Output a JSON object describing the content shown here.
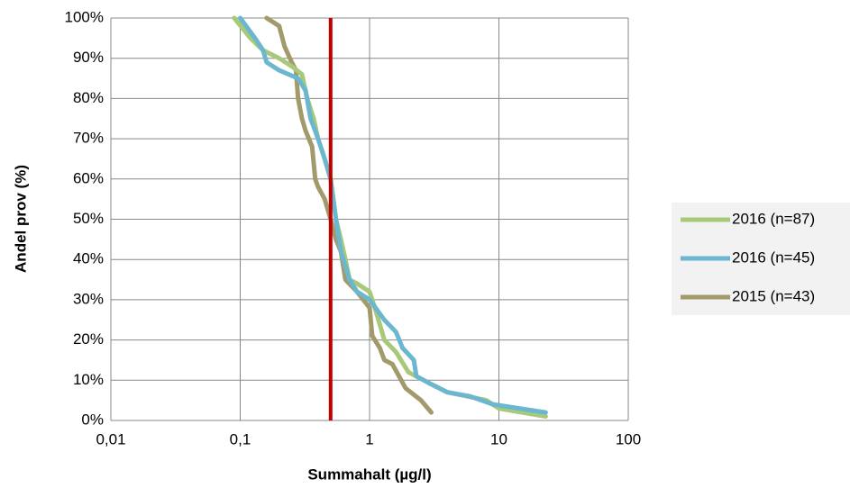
{
  "chart_data": {
    "type": "line",
    "x_label": "Summahalt (µg/l)",
    "y_label": "Andel prov (%)",
    "xscale": "log",
    "grid": true,
    "xlim": [
      0.01,
      100
    ],
    "xticks": [
      {
        "value": 0.01,
        "label": "0,01"
      },
      {
        "value": 0.1,
        "label": "0,1"
      },
      1,
      10,
      100
    ],
    "ylim": [
      0,
      100
    ],
    "yticks": [
      {
        "value": 0,
        "label": "0%"
      },
      {
        "value": 10,
        "label": "10%"
      },
      {
        "value": 20,
        "label": "20%"
      },
      {
        "value": 30,
        "label": "30%"
      },
      {
        "value": 40,
        "label": "40%"
      },
      {
        "value": 50,
        "label": "50%"
      },
      {
        "value": 60,
        "label": "60%"
      },
      {
        "value": 70,
        "label": "70%"
      },
      {
        "value": 80,
        "label": "80%"
      },
      {
        "value": 90,
        "label": "90%"
      },
      {
        "value": 100,
        "label": "100%"
      }
    ],
    "reference_line": {
      "value": 0.5,
      "color": "#c00000"
    },
    "legend": "right",
    "series": [
      {
        "name": "2016 (n=87)",
        "color": "#a9c97a",
        "x": [
          0.09,
          0.12,
          0.15,
          0.2,
          0.25,
          0.3,
          0.33,
          0.37,
          0.4,
          0.45,
          0.5,
          0.55,
          0.6,
          0.65,
          0.7,
          0.8,
          1,
          1.1,
          1.3,
          1.6,
          2,
          3,
          4,
          8,
          10,
          23
        ],
        "values": [
          100,
          95,
          92,
          90,
          88,
          86,
          80,
          75,
          70,
          65,
          60,
          50,
          45,
          40,
          35,
          34,
          32,
          28,
          20,
          17,
          12,
          9,
          7,
          5,
          3,
          1
        ]
      },
      {
        "name": "2016 (n=45)",
        "color": "#6bb7cf",
        "x": [
          0.1,
          0.13,
          0.15,
          0.16,
          0.2,
          0.28,
          0.32,
          0.35,
          0.4,
          0.45,
          0.5,
          0.55,
          0.6,
          0.7,
          0.8,
          1,
          1.3,
          1.6,
          1.8,
          2.2,
          2.3,
          3,
          4,
          6,
          9,
          23
        ],
        "values": [
          100,
          95,
          92,
          89,
          87,
          85,
          82,
          75,
          70,
          65,
          60,
          50,
          42,
          35,
          32,
          30,
          25,
          22,
          18,
          15,
          11,
          9,
          7,
          6,
          4,
          2
        ]
      },
      {
        "name": "2015 (n=43)",
        "color": "#a39a6c",
        "x": [
          0.16,
          0.2,
          0.22,
          0.25,
          0.27,
          0.28,
          0.3,
          0.32,
          0.36,
          0.38,
          0.4,
          0.45,
          0.5,
          0.55,
          0.6,
          0.65,
          0.8,
          1,
          1.05,
          1.2,
          1.3,
          1.5,
          1.9,
          2.5,
          3
        ],
        "values": [
          100,
          98,
          93,
          89,
          87,
          80,
          75,
          72,
          68,
          60,
          58,
          55,
          50,
          45,
          42,
          35,
          32,
          28,
          21,
          18,
          15,
          14,
          8,
          5,
          2
        ]
      }
    ]
  }
}
